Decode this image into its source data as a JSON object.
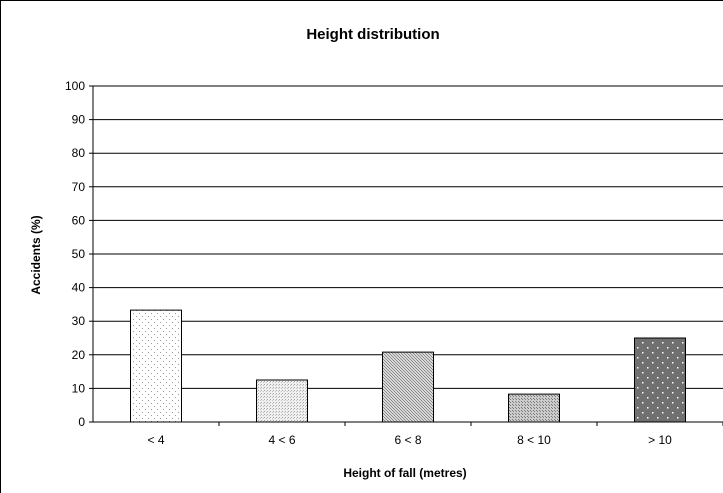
{
  "chart_data": {
    "type": "bar",
    "title": "Height distribution",
    "xlabel": "Height of fall (metres)",
    "ylabel": "Accidents (%)",
    "categories": [
      "< 4",
      "4 < 6",
      "6 < 8",
      "8 < 10",
      "> 10"
    ],
    "values": [
      33.3,
      12.5,
      20.8,
      8.3,
      25.0
    ],
    "ylim": [
      0,
      100
    ],
    "yticks": [
      "0",
      "10",
      "20",
      "30",
      "40",
      "50",
      "60",
      "70",
      "80",
      "90",
      "100"
    ],
    "grid": true,
    "legend": "none",
    "bar_patterns": [
      "fine-dots-light",
      "fine-hatch-light",
      "crosshatch-medium",
      "dots-medium",
      "white-dots-on-dark"
    ]
  }
}
